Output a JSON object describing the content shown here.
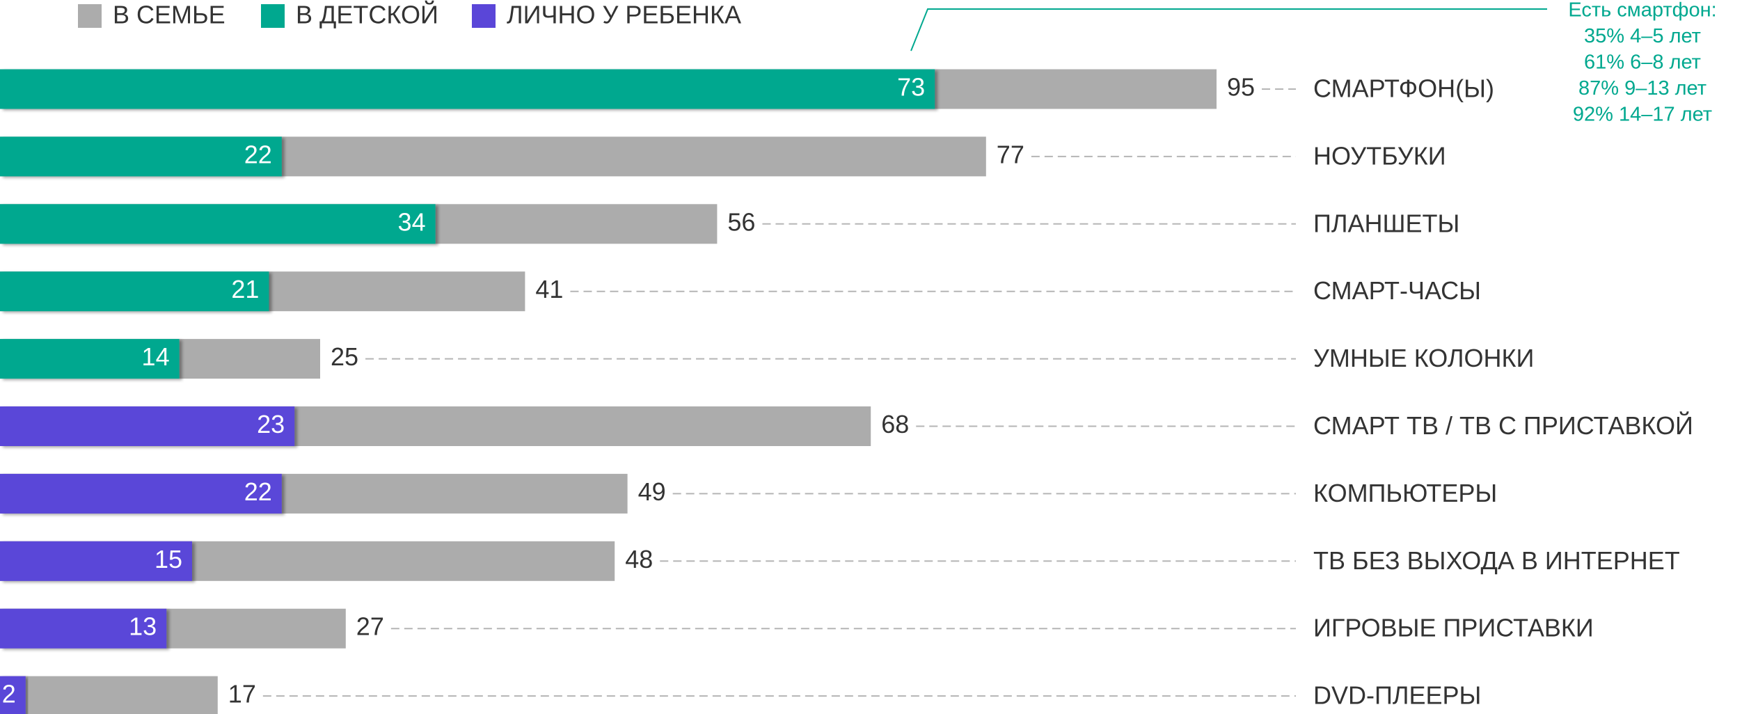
{
  "chart_data": {
    "type": "bar",
    "categories": [
      "СМАРТФОН(Ы)",
      "НОУТБУКИ",
      "ПЛАНШЕТЫ",
      "СМАРТ-ЧАСЫ",
      "УМНЫЕ КОЛОНКИ",
      "СМАРТ ТВ / ТВ С ПРИСТАВКОЙ",
      "КОМПЬЮТЕРЫ",
      "ТВ БЕЗ ВЫХОДА В ИНТЕРНЕТ",
      "ИГРОВЫЕ ПРИСТАВКИ",
      "DVD-ПЛЕЕРЫ"
    ],
    "series": [
      {
        "name": "В СЕМЬЕ",
        "color": "#acacac",
        "values": [
          95,
          77,
          56,
          41,
          25,
          68,
          49,
          48,
          27,
          17
        ]
      },
      {
        "name": "В ДЕТСКОЙ",
        "color": "#00a88f",
        "values": [
          73,
          22,
          34,
          21,
          14,
          null,
          null,
          null,
          null,
          null
        ]
      },
      {
        "name": "ЛИЧНО У РЕБЕНКА",
        "color": "#5a46d8",
        "values": [
          null,
          null,
          null,
          null,
          null,
          23,
          22,
          15,
          13,
          2
        ]
      }
    ],
    "annotation": [
      "Есть смартфон:",
      "35% 4–5 лет",
      "61% 6–8 лет",
      "87% 9–13 лет",
      "92% 14–17 лет"
    ],
    "annotation_color": "#00a88f"
  }
}
